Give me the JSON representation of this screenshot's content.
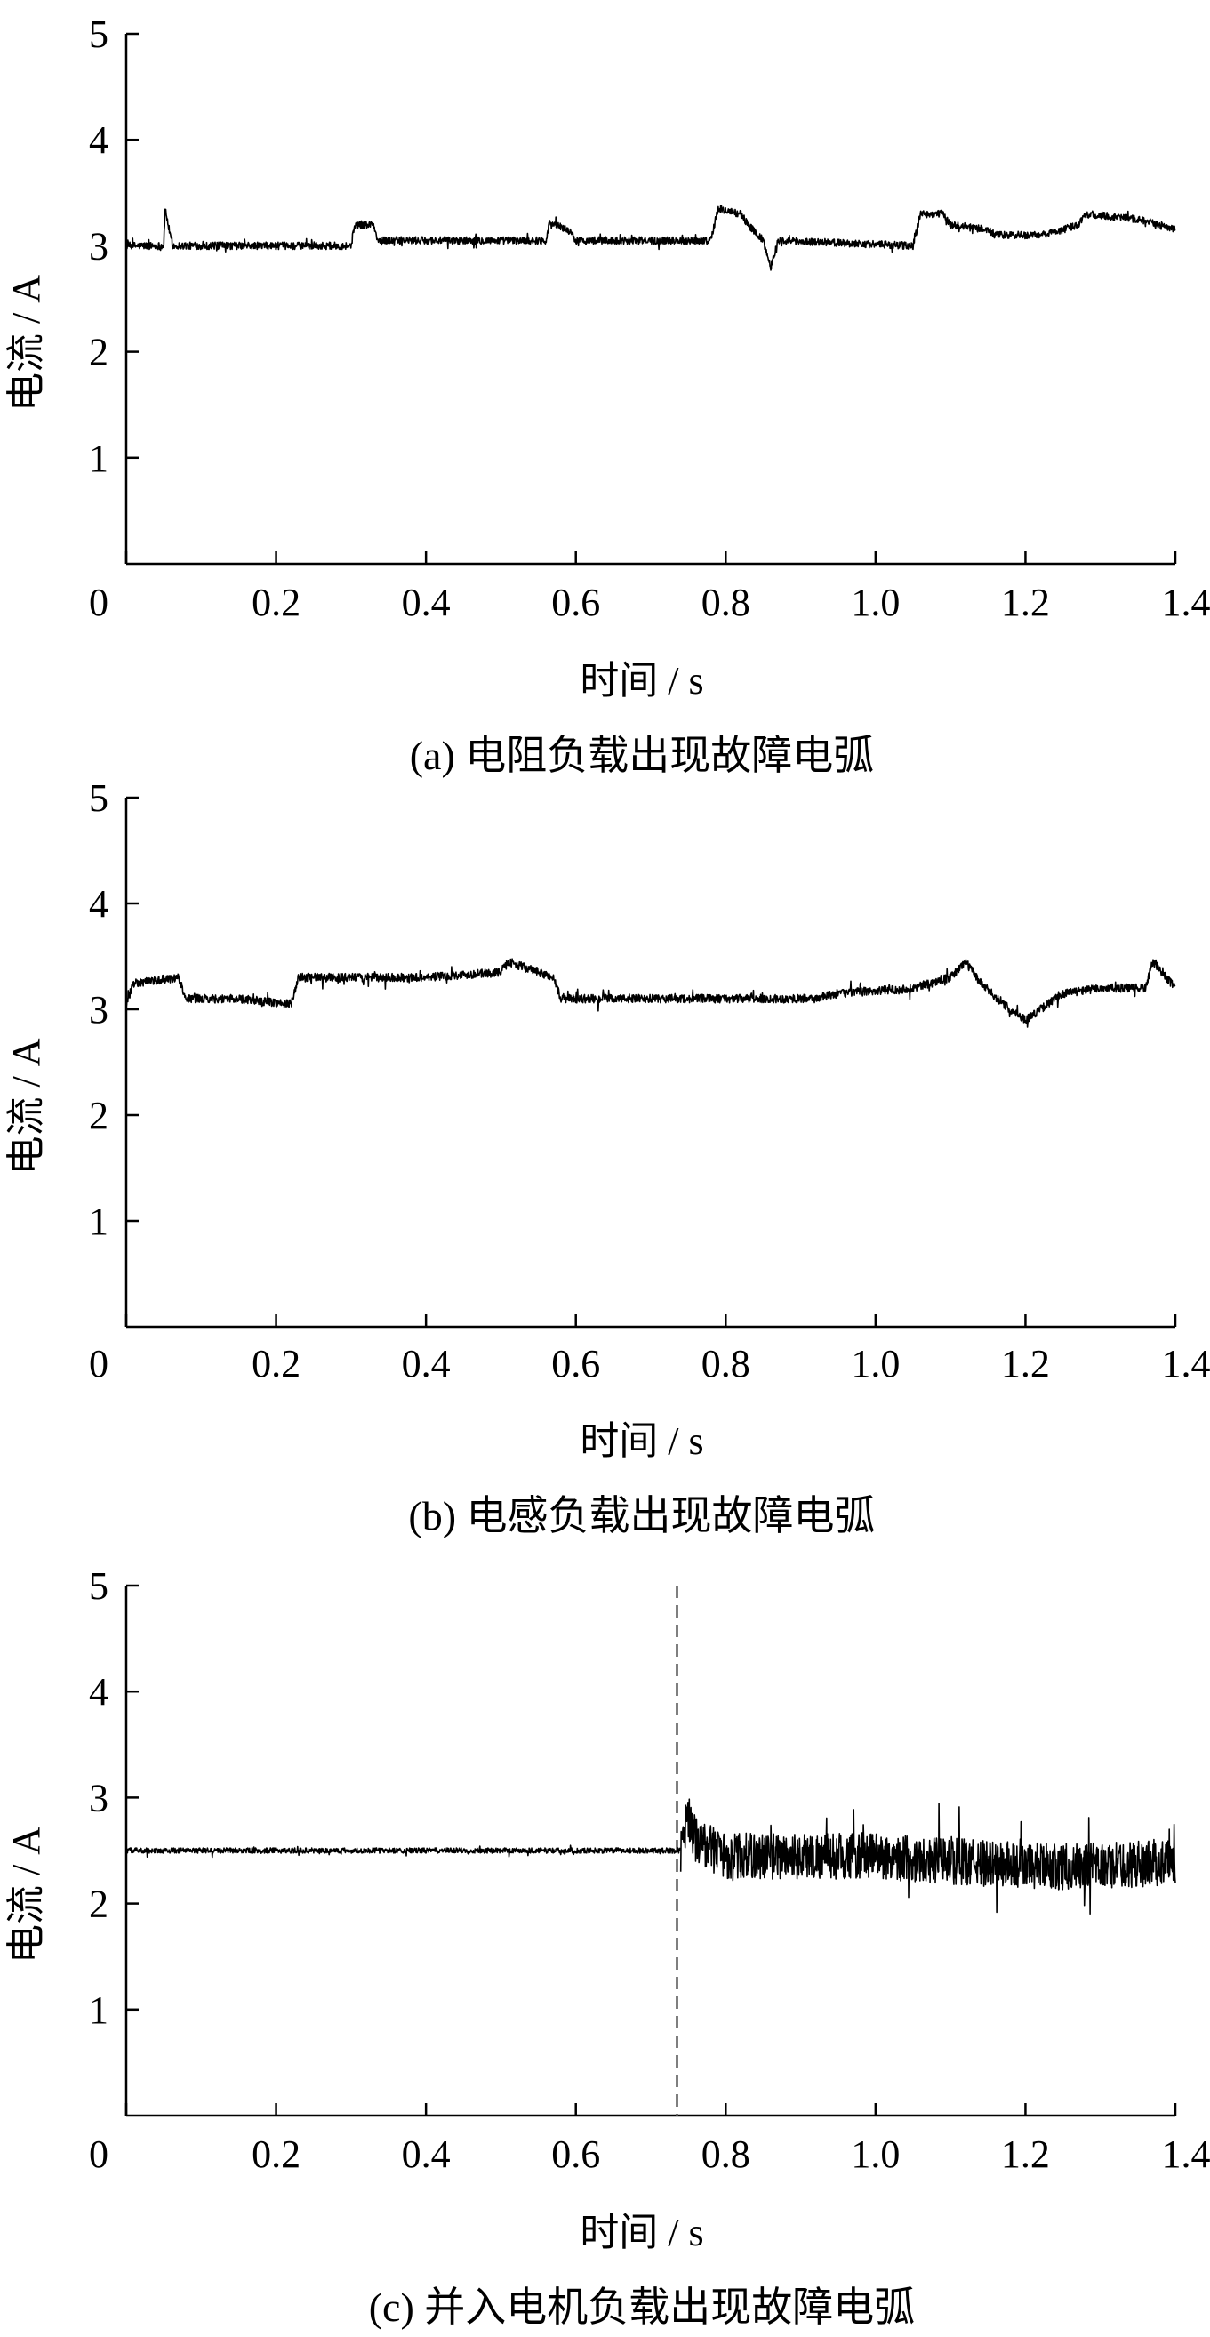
{
  "chart_data": [
    {
      "type": "line",
      "caption": "(a)  电阻负载出现故障电弧",
      "xlabel": "时间 / s",
      "ylabel": "电流 / A",
      "xlim": [
        0,
        1.4
      ],
      "ylim": [
        0,
        5
      ],
      "xticks": [
        "0",
        "0.2",
        "0.4",
        "0.6",
        "0.8",
        "1.0",
        "1.2",
        "1.4"
      ],
      "yticks": [
        "1",
        "2",
        "3",
        "4",
        "5"
      ],
      "grid": false,
      "series": [
        {
          "noise": 0.035,
          "x": [
            0,
            0.05,
            0.052,
            0.06,
            0.062,
            0.3,
            0.305,
            0.33,
            0.335,
            0.56,
            0.565,
            0.59,
            0.6,
            0.78,
            0.79,
            0.82,
            0.83,
            0.85,
            0.86,
            0.87,
            1.05,
            1.06,
            1.09,
            1.1,
            1.15,
            1.16,
            1.22,
            1.25,
            1.27,
            1.28,
            1.35,
            1.4
          ],
          "y": [
            3.0,
            3.0,
            3.35,
            3.05,
            3.0,
            3.0,
            3.2,
            3.2,
            3.05,
            3.05,
            3.22,
            3.15,
            3.05,
            3.05,
            3.35,
            3.3,
            3.2,
            3.05,
            2.8,
            3.05,
            3.0,
            3.3,
            3.3,
            3.2,
            3.15,
            3.1,
            3.1,
            3.15,
            3.2,
            3.3,
            3.25,
            3.15
          ]
        }
      ]
    },
    {
      "type": "line",
      "caption": "(b)  电感负载出现故障电弧",
      "xlabel": "时间 / s",
      "ylabel": "电流 / A",
      "xlim": [
        0,
        1.4
      ],
      "ylim": [
        0,
        5
      ],
      "xticks": [
        "0",
        "0.2",
        "0.4",
        "0.6",
        "0.8",
        "1.0",
        "1.2",
        "1.4"
      ],
      "yticks": [
        "1",
        "2",
        "3",
        "4",
        "5"
      ],
      "grid": false,
      "series": [
        {
          "noise": 0.04,
          "x": [
            0,
            0.01,
            0.07,
            0.08,
            0.15,
            0.22,
            0.23,
            0.38,
            0.39,
            0.5,
            0.51,
            0.55,
            0.57,
            0.58,
            0.9,
            0.92,
            0.95,
            1.05,
            1.1,
            1.12,
            1.14,
            1.17,
            1.2,
            1.25,
            1.3,
            1.36,
            1.37,
            1.4
          ],
          "y": [
            3.05,
            3.25,
            3.3,
            3.1,
            3.1,
            3.05,
            3.3,
            3.3,
            3.3,
            3.35,
            3.45,
            3.35,
            3.3,
            3.1,
            3.1,
            3.1,
            3.15,
            3.2,
            3.3,
            3.45,
            3.25,
            3.05,
            2.9,
            3.15,
            3.2,
            3.2,
            3.45,
            3.2
          ]
        }
      ]
    },
    {
      "type": "line",
      "caption": "(c)  并入电机负载出现故障电弧",
      "xlabel": "时间 / s",
      "ylabel": "电流 / A",
      "xlim": [
        0,
        1.4
      ],
      "ylim": [
        0,
        5
      ],
      "xticks": [
        "0",
        "0.2",
        "0.4",
        "0.6",
        "0.8",
        "1.0",
        "1.2",
        "1.4"
      ],
      "yticks": [
        "1",
        "2",
        "3",
        "4",
        "5"
      ],
      "grid": false,
      "vline_x": 0.735,
      "series": [
        {
          "noise": 0.025,
          "x": [
            0,
            0.74
          ],
          "y": [
            2.5,
            2.5
          ]
        },
        {
          "noise": 0.22,
          "x": [
            0.74,
            0.75,
            0.76,
            0.8,
            0.9,
            1.0,
            1.1,
            1.2,
            1.3,
            1.4
          ],
          "y": [
            2.5,
            2.85,
            2.6,
            2.45,
            2.45,
            2.45,
            2.4,
            2.35,
            2.35,
            2.4
          ]
        }
      ]
    }
  ],
  "colors": {
    "line": "#000000",
    "axis": "#000000",
    "vline": "#555555"
  }
}
